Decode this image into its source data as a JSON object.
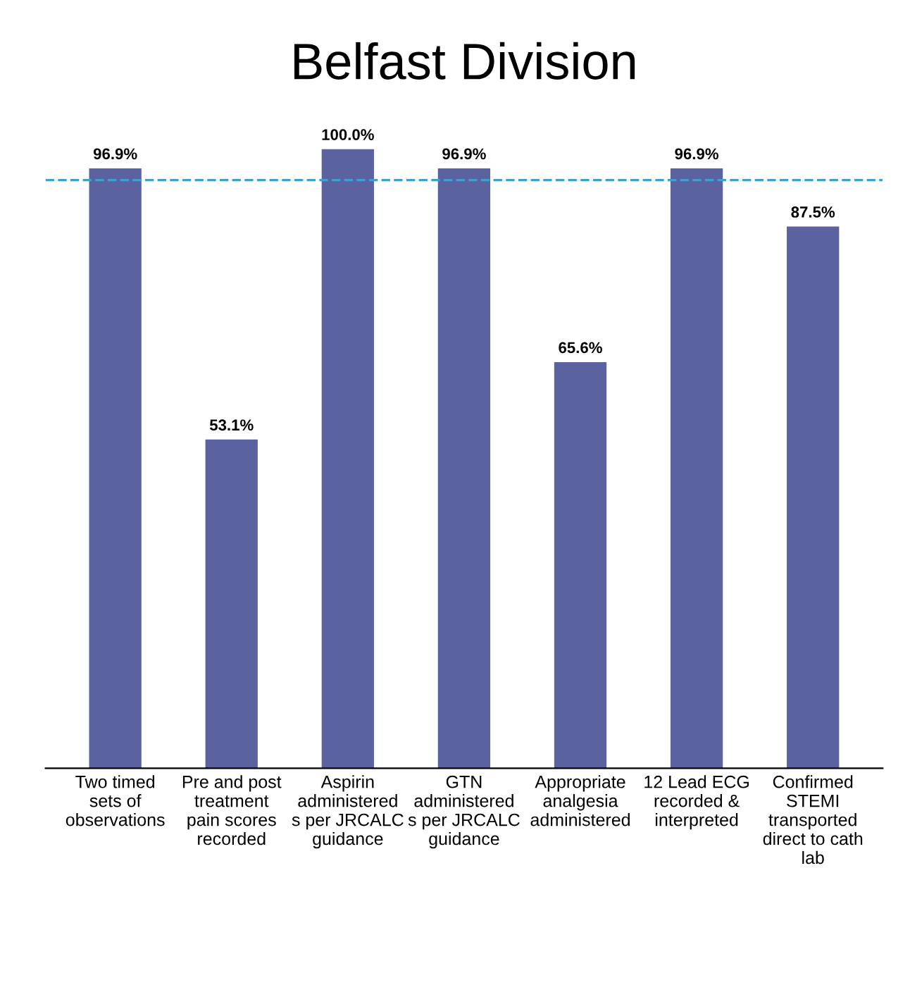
{
  "chart_data": {
    "type": "bar",
    "title": "Belfast Division",
    "categories": [
      "Two timed\nsets of\nobservations",
      "Pre and post\ntreatment\npain scores\nrecorded",
      "Aspirin\nadministered\ns per JRCALC\nguidance",
      "GTN\nadministered\ns per JRCALC\nguidance",
      "Appropriate\nanalgesia\nadministered",
      "12 Lead ECG\nrecorded &\ninterpreted",
      "Confirmed\nSTEMI\ntransported\ndirect to cath\nlab"
    ],
    "values": [
      96.9,
      53.1,
      100.0,
      96.9,
      65.6,
      96.9,
      87.5
    ],
    "value_labels": [
      "96.9%",
      "53.1%",
      "100.0%",
      "96.9%",
      "65.6%",
      "96.9%",
      "87.5%"
    ],
    "color": "#5a62a0",
    "ref_lines": [
      {
        "axis": "y",
        "value": 95,
        "color": "#3fa0d0",
        "line_style": "dashed"
      }
    ],
    "relative": false,
    "grid": false,
    "legend": false
  }
}
